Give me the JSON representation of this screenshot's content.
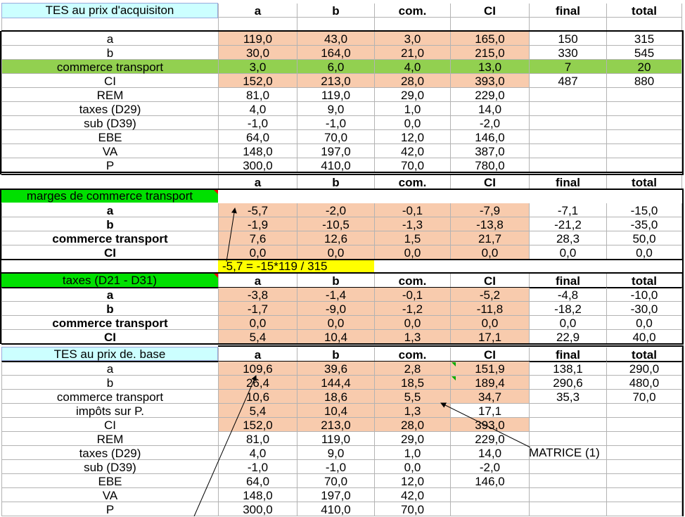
{
  "sections": [
    {
      "title": "TES au prix d'acquisiton",
      "header": [
        "a",
        "b",
        "com.",
        "CI",
        "final",
        "total"
      ],
      "rows": [
        [
          "a",
          "119,0",
          "43,0",
          "3,0",
          "165,0",
          "150",
          "315"
        ],
        [
          "b",
          "30,0",
          "164,0",
          "21,0",
          "215,0",
          "330",
          "545"
        ],
        [
          "commerce transport",
          "3,0",
          "6,0",
          "4,0",
          "13,0",
          "7",
          "20"
        ],
        [
          "CI",
          "152,0",
          "213,0",
          "28,0",
          "393,0",
          "487",
          "880"
        ],
        [
          "REM",
          "81,0",
          "119,0",
          "29,0",
          "229,0",
          "",
          ""
        ],
        [
          "taxes (D29)",
          "4,0",
          "9,0",
          "1,0",
          "14,0",
          "",
          ""
        ],
        [
          "sub (D39)",
          "-1,0",
          "-1,0",
          "0,0",
          "-2,0",
          "",
          ""
        ],
        [
          "EBE",
          "64,0",
          "70,0",
          "12,0",
          "146,0",
          "",
          ""
        ],
        [
          "VA",
          "148,0",
          "197,0",
          "42,0",
          "387,0",
          "",
          ""
        ],
        [
          "P",
          "300,0",
          "410,0",
          "70,0",
          "780,0",
          "",
          ""
        ]
      ]
    },
    {
      "title": "marges de commerce transport",
      "header": [
        "a",
        "b",
        "com.",
        "CI",
        "final",
        "total"
      ],
      "rows": [
        [
          "a",
          "-5,7",
          "-2,0",
          "-0,1",
          "-7,9",
          "-7,1",
          "-15,0"
        ],
        [
          "b",
          "-1,9",
          "-10,5",
          "-1,3",
          "-13,8",
          "-21,2",
          "-35,0"
        ],
        [
          "commerce transport",
          "7,6",
          "12,6",
          "1,5",
          "21,7",
          "28,3",
          "50,0"
        ],
        [
          "CI",
          "0,0",
          "0,0",
          "0,0",
          "0,0",
          "0,0",
          "0,0"
        ]
      ],
      "formula_note": "-5,7 = -15*119 / 315"
    },
    {
      "title": "taxes (D21 - D31)",
      "header": [
        "a",
        "b",
        "com.",
        "CI",
        "final",
        "total"
      ],
      "rows": [
        [
          "a",
          "-3,8",
          "-1,4",
          "-0,1",
          "-5,2",
          "-4,8",
          "-10,0"
        ],
        [
          "b",
          "-1,7",
          "-9,0",
          "-1,2",
          "-11,8",
          "-18,2",
          "-30,0"
        ],
        [
          "commerce transport",
          "0,0",
          "0,0",
          "0,0",
          "0,0",
          "0,0",
          "0,0"
        ],
        [
          "CI",
          "5,4",
          "10,4",
          "1,3",
          "17,1",
          "22,9",
          "40,0"
        ]
      ]
    },
    {
      "title": "TES au prix de. base",
      "header": [
        "a",
        "b",
        "com.",
        "CI",
        "final",
        "total"
      ],
      "rows": [
        [
          "a",
          "109,6",
          "39,6",
          "2,8",
          "151,9",
          "138,1",
          "290,0"
        ],
        [
          "b",
          "26,4",
          "144,4",
          "18,5",
          "189,4",
          "290,6",
          "480,0"
        ],
        [
          "commerce transport",
          "10,6",
          "18,6",
          "5,5",
          "34,7",
          "35,3",
          "70,0"
        ],
        [
          "impôts sur P.",
          "5,4",
          "10,4",
          "1,3",
          "17,1",
          "",
          ""
        ],
        [
          "CI",
          "152,0",
          "213,0",
          "28,0",
          "393,0",
          "",
          ""
        ],
        [
          "REM",
          "81,0",
          "119,0",
          "29,0",
          "229,0",
          "",
          ""
        ],
        [
          "taxes (D29)",
          "4,0",
          "9,0",
          "1,0",
          "14,0",
          "",
          ""
        ],
        [
          "sub (D39)",
          "-1,0",
          "-1,0",
          "0,0",
          "-2,0",
          "",
          ""
        ],
        [
          "EBE",
          "64,0",
          "70,0",
          "12,0",
          "146,0",
          "",
          ""
        ],
        [
          "VA",
          "148,0",
          "197,0",
          "42,0",
          "",
          "",
          ""
        ],
        [
          "P",
          "300,0",
          "410,0",
          "70,0",
          "",
          "",
          ""
        ]
      ],
      "matrix_note": "MATRICE (1)"
    }
  ],
  "colors": {
    "salmon": "#f8cbad",
    "cyan": "#ccffff",
    "light_green": "#92d050",
    "bright_green": "#00e000",
    "yellow": "#ffff00"
  }
}
